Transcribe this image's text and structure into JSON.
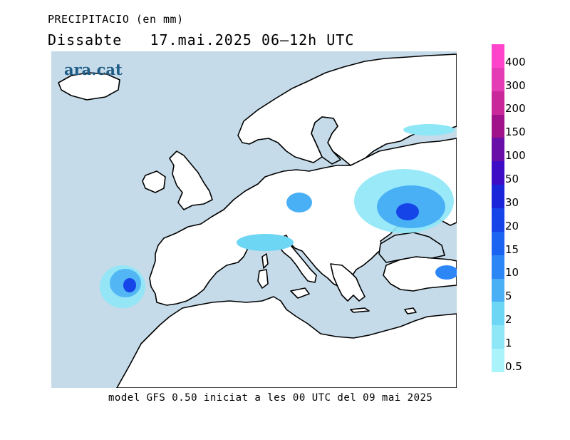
{
  "header": {
    "variable": "PRECIPITACIO (en mm)",
    "day": "Dissabte",
    "date_range": "17.mai.2025 06–12h UTC"
  },
  "logo": {
    "text": "ara.cat"
  },
  "footer": {
    "text": "model GFS 0.50 iniciat a les 00 UTC del 09 mai 2025"
  },
  "colors": {
    "sea": "#c5dbe9",
    "land": "#ffffff",
    "coast": "#000000"
  },
  "legend": {
    "levels": [
      {
        "label": "400",
        "color": "#ff44cc"
      },
      {
        "label": "300",
        "color": "#e43cb4"
      },
      {
        "label": "200",
        "color": "#c8289a"
      },
      {
        "label": "150",
        "color": "#a0128a"
      },
      {
        "label": "100",
        "color": "#6a0ea8"
      },
      {
        "label": "50",
        "color": "#3d0cc4"
      },
      {
        "label": "30",
        "color": "#1a24d8"
      },
      {
        "label": "20",
        "color": "#1544e8"
      },
      {
        "label": "15",
        "color": "#1b64f2"
      },
      {
        "label": "10",
        "color": "#2d86f5"
      },
      {
        "label": "5",
        "color": "#4ab0f5"
      },
      {
        "label": "2",
        "color": "#6dd6f5"
      },
      {
        "label": "1",
        "color": "#8ee7f7"
      },
      {
        "label": "0.5",
        "color": "#aaf3fb"
      }
    ]
  }
}
